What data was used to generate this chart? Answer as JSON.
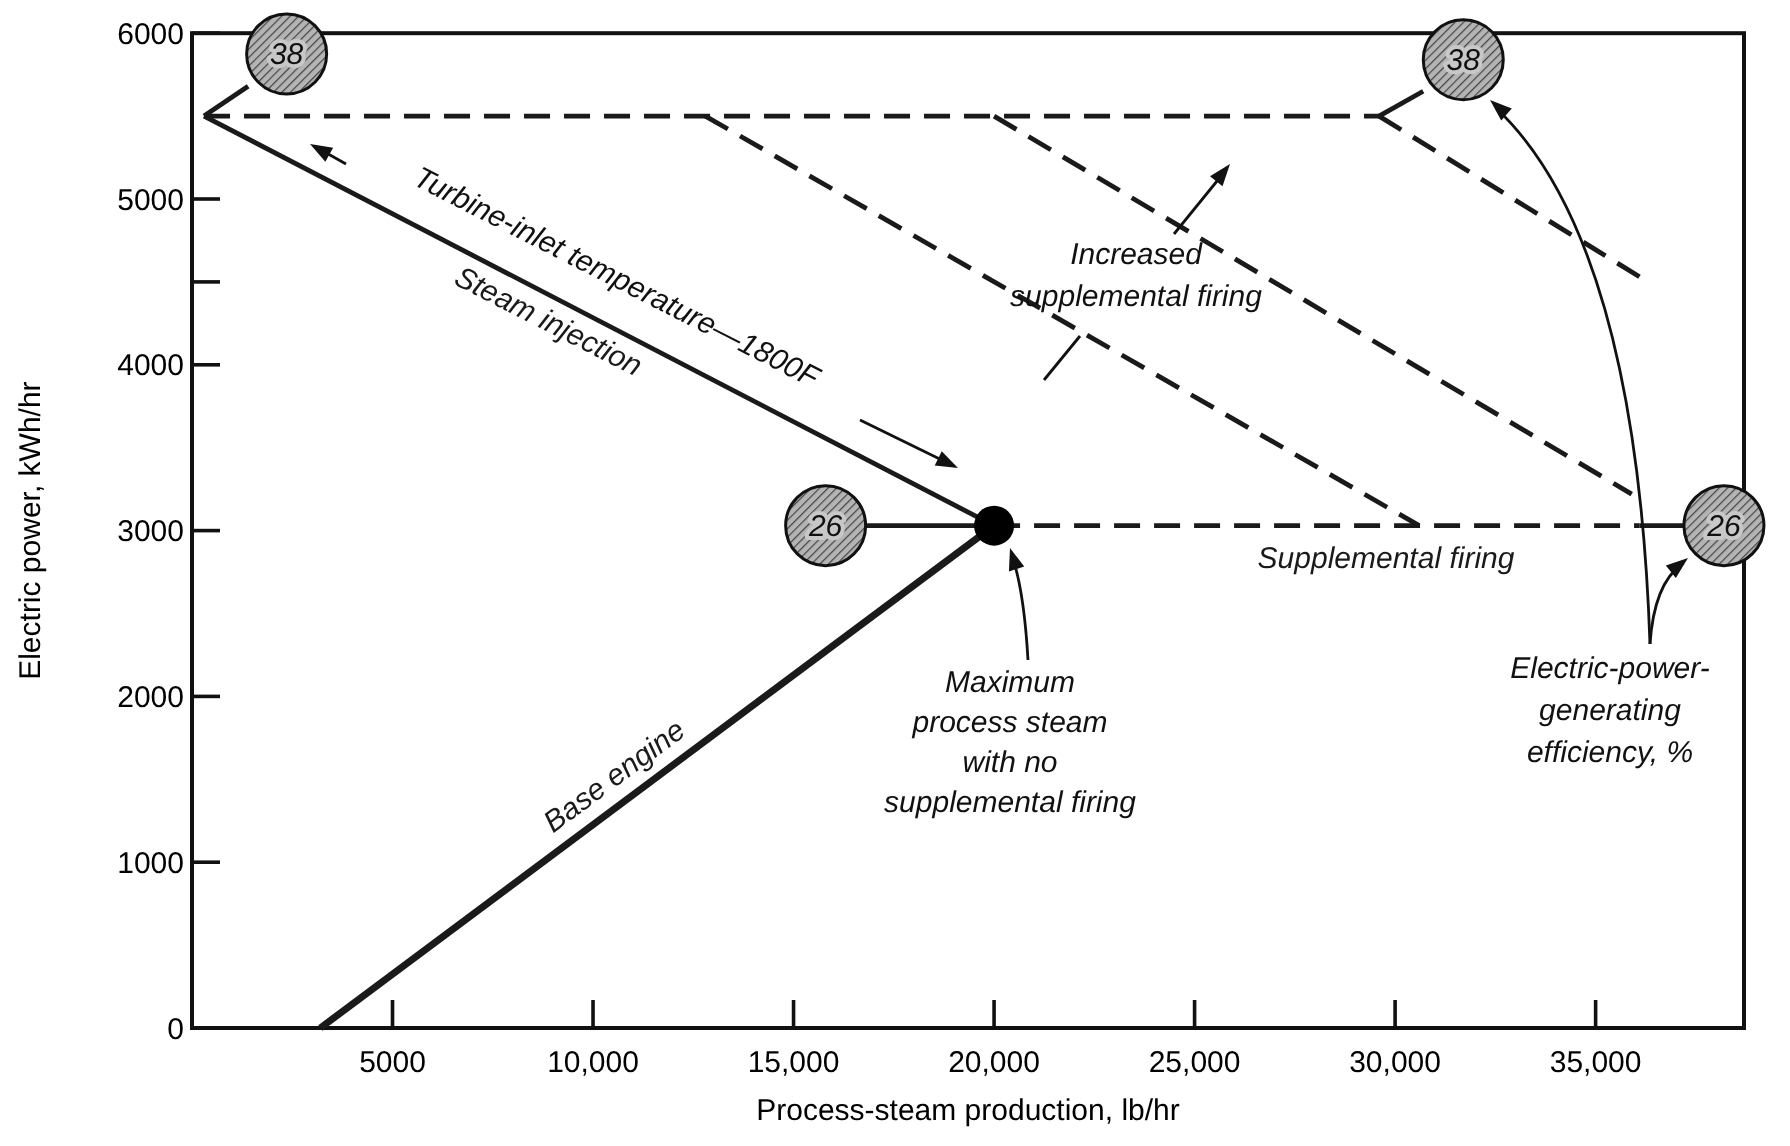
{
  "chart_data": {
    "type": "line",
    "xlabel": "Process-steam production, lb/hr",
    "ylabel": "Electric power, kWh/hr",
    "xlim": [
      0,
      38700
    ],
    "ylim": [
      0,
      6000
    ],
    "xticks": [
      5000,
      {
        "value": 10000,
        "label": "10,000"
      },
      {
        "value": 15000,
        "label": "15,000"
      },
      {
        "value": 20000,
        "label": "20,000"
      },
      {
        "value": 25000,
        "label": "25,000"
      },
      {
        "value": 30000,
        "label": "30,000"
      },
      {
        "value": 35000,
        "label": "35,000"
      }
    ],
    "yticks": [
      0,
      1000,
      2000,
      3000,
      4000,
      {
        "value": 4500,
        "label": null
      },
      5000,
      6000
    ],
    "grid": false,
    "legend": false,
    "series": [
      {
        "name": "Base engine",
        "color": "#1a1a1a",
        "line_style": "solid",
        "x": [
          3200,
          20000
        ],
        "values": [
          0,
          3030
        ]
      },
      {
        "name": "Steam injection",
        "color": "#1a1a1a",
        "line_style": "solid",
        "x": [
          20000,
          300
        ],
        "values": [
          3030,
          5500
        ]
      },
      {
        "name": "Supplemental firing",
        "color": "#1a1a1a",
        "line_style": "dashed",
        "x": [
          20000,
          36100
        ],
        "values": [
          3030,
          3030
        ]
      },
      {
        "color": "#1a1a1a",
        "line_style": "dashed",
        "x": [
          300,
          29600
        ],
        "values": [
          5500,
          5500
        ]
      },
      {
        "color": "#1a1a1a",
        "line_style": "dashed",
        "x": [
          29600,
          36100
        ],
        "values": [
          5500,
          4530
        ]
      },
      {
        "color": "#1a1a1a",
        "line_style": "dashed",
        "x": [
          20000,
          35900
        ],
        "values": [
          5500,
          3220
        ]
      },
      {
        "color": "#1a1a1a",
        "line_style": "dashed",
        "x": [
          12800,
          30600
        ],
        "values": [
          5500,
          3030
        ]
      },
      {
        "color": "#1a1a1a",
        "line_style": "solid",
        "x": [
          300,
          1400
        ],
        "values": [
          5500,
          5680
        ]
      },
      {
        "color": "#1a1a1a",
        "line_style": "solid",
        "x": [
          29600,
          30700
        ],
        "values": [
          5500,
          5650
        ]
      },
      {
        "color": "#1a1a1a",
        "line_style": "solid",
        "x": [
          20000,
          16800
        ],
        "values": [
          3030,
          3030
        ]
      },
      {
        "color": "#1a1a1a",
        "line_style": "solid",
        "x": [
          36100,
          37200
        ],
        "values": [
          3030,
          3030
        ]
      },
      {
        "type": "scatter",
        "color": "#000000",
        "marker": "circle",
        "x": [
          20000
        ],
        "values": [
          3030
        ]
      }
    ],
    "annotations": [
      "Turbine-inlet temperature—1800F",
      "Increased\nsupplemental firing",
      "Maximum\nprocess steam\nwith no\nsupplemental firing",
      "Electric-power-\ngenerating\nefficiency, %",
      {
        "text": "38",
        "x": 2360,
        "y": 5875
      },
      {
        "text": "38",
        "x": 31700,
        "y": 5840
      },
      {
        "text": "26",
        "x": 15800,
        "y": 3030
      },
      {
        "text": "26",
        "x": 38200,
        "y": 3030
      }
    ]
  }
}
